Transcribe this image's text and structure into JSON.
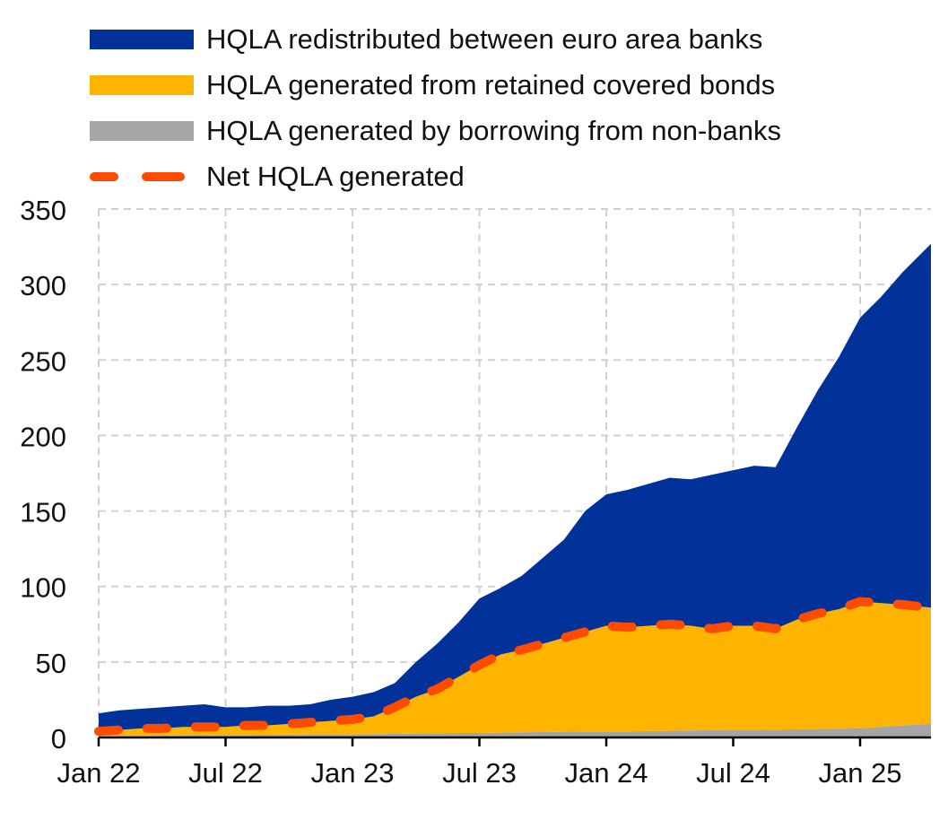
{
  "chart_data": {
    "type": "area",
    "title": "",
    "xlabel": "",
    "ylabel": "",
    "ylim": [
      0,
      350
    ],
    "yticks": [
      0,
      50,
      100,
      150,
      200,
      250,
      300,
      350
    ],
    "xtick_labels": [
      "Jan 22",
      "Jul 22",
      "Jan 23",
      "Jul 23",
      "Jan 24",
      "Jul 24",
      "Jan 25"
    ],
    "xtick_month_index": [
      0,
      6,
      12,
      18,
      24,
      30,
      36
    ],
    "x_month_index_end": 39.35,
    "grid": true,
    "legend_position": "top",
    "x": [
      "2022-01",
      "2022-02",
      "2022-03",
      "2022-04",
      "2022-05",
      "2022-06",
      "2022-07",
      "2022-08",
      "2022-09",
      "2022-10",
      "2022-11",
      "2022-12",
      "2023-01",
      "2023-02",
      "2023-03",
      "2023-04",
      "2023-05",
      "2023-06",
      "2023-07",
      "2023-08",
      "2023-09",
      "2023-10",
      "2023-11",
      "2023-12",
      "2024-01",
      "2024-02",
      "2024-03",
      "2024-04",
      "2024-05",
      "2024-06",
      "2024-07",
      "2024-08",
      "2024-09",
      "2024-10",
      "2024-11",
      "2024-12",
      "2025-01",
      "2025-02",
      "2025-03",
      "2025-04"
    ],
    "series": [
      {
        "name": "HQLA generated by borrowing from non-banks",
        "kind": "stack",
        "color": "#a5a5a5",
        "values": [
          1,
          1,
          1,
          1.2,
          1.4,
          1.5,
          1.6,
          1.7,
          1.8,
          1.9,
          2,
          2,
          2,
          2.2,
          2.4,
          2.6,
          2.8,
          3,
          3,
          3.2,
          3.4,
          3.6,
          3.8,
          4,
          4,
          4,
          4.2,
          4.4,
          4.6,
          4.8,
          5,
          5,
          5.2,
          5.4,
          5.6,
          5.8,
          6,
          7,
          8,
          9
        ]
      },
      {
        "name": "HQLA generated from retained covered bonds",
        "kind": "stack",
        "color": "#ffb400",
        "values": [
          3,
          4,
          5,
          4.8,
          5.6,
          5.5,
          5.4,
          6.3,
          6.2,
          7.1,
          8,
          9,
          10,
          11.8,
          17.6,
          24.4,
          29.2,
          37,
          45,
          51.8,
          54.6,
          58.4,
          62.2,
          66,
          70,
          69,
          69.8,
          70.6,
          69.4,
          67.2,
          69,
          69,
          66.8,
          72.6,
          76.4,
          79.2,
          84,
          82,
          80,
          77
        ]
      },
      {
        "name": "HQLA redistributed between euro area banks",
        "kind": "stack",
        "color": "#003299",
        "values": [
          12,
          13,
          13,
          14,
          14,
          15,
          13,
          12,
          13,
          12,
          12,
          14,
          15,
          16,
          16,
          23,
          30,
          36,
          44,
          44,
          49,
          57,
          65,
          80,
          87,
          91,
          94,
          97,
          97,
          102,
          103,
          106,
          107,
          127,
          148,
          167,
          188,
          203,
          220,
          241
        ]
      },
      {
        "name": "Net HQLA generated",
        "kind": "line",
        "color": "#ff4b00",
        "values": [
          4,
          5,
          6,
          6,
          7,
          7,
          7,
          8,
          8,
          9,
          10,
          11,
          12,
          14,
          20,
          27,
          32,
          40,
          48,
          55,
          58,
          62,
          66,
          70,
          74,
          73,
          74,
          75,
          74,
          72,
          74,
          74,
          72,
          78,
          82,
          85,
          90,
          89,
          88,
          86
        ]
      }
    ],
    "legend": [
      {
        "label": "HQLA redistributed between euro area banks",
        "color": "#003299",
        "style": "fill"
      },
      {
        "label": "HQLA generated from retained covered bonds",
        "color": "#ffb400",
        "style": "fill"
      },
      {
        "label": "HQLA generated by borrowing from non-banks",
        "color": "#a5a5a5",
        "style": "fill"
      },
      {
        "label": "Net HQLA generated",
        "color": "#ff4b00",
        "style": "dashed"
      }
    ]
  }
}
